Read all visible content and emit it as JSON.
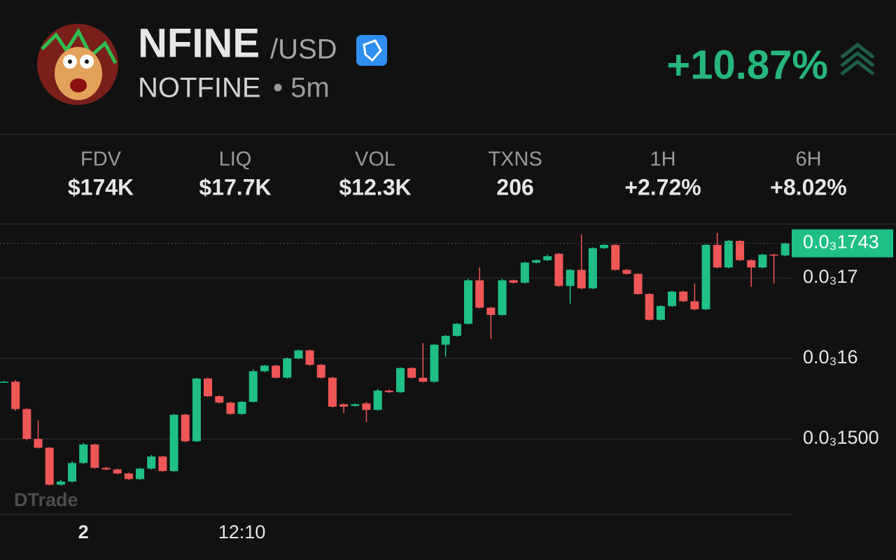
{
  "header": {
    "symbol": "NFINE",
    "quote": "/USD",
    "name": "NOTFINE",
    "interval": "• 5m",
    "change": "+10.87%"
  },
  "stats": [
    {
      "label": "FDV",
      "value": "$174K"
    },
    {
      "label": "LIQ",
      "value": "$17.7K"
    },
    {
      "label": "VOL",
      "value": "$12.3K"
    },
    {
      "label": "TXNS",
      "value": "206"
    },
    {
      "label": "1H",
      "value": "+2.72%"
    },
    {
      "label": "6H",
      "value": "+8.02%"
    }
  ],
  "watermark": "DTrade",
  "chart_data": {
    "type": "candlestick",
    "categories": [
      null,
      null,
      null,
      null,
      null,
      null,
      null,
      "2",
      null,
      null,
      null,
      null,
      null,
      null,
      null,
      null,
      null,
      null,
      null,
      null,
      null,
      "12:10",
      null,
      null,
      null,
      null,
      null,
      null,
      null,
      null,
      null,
      null,
      null,
      null,
      null,
      null,
      null,
      null,
      null,
      null,
      null,
      null,
      null,
      null,
      null,
      null,
      null,
      null,
      null,
      null,
      null,
      null,
      null,
      null,
      null,
      null,
      null,
      null,
      null,
      null,
      null,
      null,
      null,
      null,
      null,
      null,
      null,
      null,
      null,
      null
    ],
    "open": [
      0.0001571,
      0.0001571,
      0.0001537,
      0.00015,
      0.0001489,
      0.0001443,
      0.0001447,
      0.000147,
      0.0001493,
      0.0001464,
      0.0001462,
      0.0001457,
      0.000145,
      0.0001463,
      0.0001478,
      0.000146,
      0.000153,
      0.0001497,
      0.0001575,
      0.0001553,
      0.0001545,
      0.0001531,
      0.0001546,
      0.0001584,
      0.0001591,
      0.0001576,
      0.00016,
      0.000161,
      0.0001592,
      0.0001576,
      0.0001543,
      0.0001541,
      0.0001544,
      0.0001536,
      0.000156,
      0.0001558,
      0.0001588,
      0.0001576,
      0.0001571,
      0.0001617,
      0.0001628,
      0.0001643,
      0.0001697,
      0.0001663,
      0.0001654,
      0.0001697,
      0.0001694,
      0.0001719,
      0.0001722,
      0.000173,
      0.000169,
      0.000171,
      0.0001687,
      0.0001737,
      0.0001741,
      0.000171,
      0.0001705,
      0.000168,
      0.0001648,
      0.0001665,
      0.0001683,
      0.0001671,
      0.0001661,
      0.0001741,
      0.0001713,
      0.0001746,
      0.0001722,
      0.0001713,
      0.0001729,
      0.0001728
    ],
    "high": [
      0.0001572,
      0.0001573,
      0.0001538,
      0.0001523,
      0.000149,
      0.0001449,
      0.0001472,
      0.0001495,
      0.0001494,
      0.0001465,
      0.0001463,
      0.0001458,
      0.0001464,
      0.000148,
      0.0001479,
      0.0001531,
      0.0001531,
      0.0001576,
      0.0001576,
      0.0001554,
      0.0001546,
      0.0001547,
      0.0001586,
      0.0001592,
      0.0001592,
      0.0001601,
      0.0001611,
      0.0001611,
      0.0001593,
      0.0001577,
      0.0001544,
      0.0001544,
      0.0001546,
      0.0001562,
      0.0001561,
      0.0001589,
      0.0001589,
      0.0001619,
      0.0001618,
      0.0001629,
      0.0001644,
      0.0001699,
      0.0001713,
      0.0001664,
      0.0001699,
      0.0001698,
      0.000172,
      0.0001723,
      0.0001729,
      0.0001731,
      0.0001711,
      0.0001754,
      0.0001738,
      0.0001742,
      0.0001742,
      0.0001711,
      0.0001706,
      0.0001681,
      0.0001666,
      0.0001684,
      0.0001684,
      0.0001693,
      0.0001742,
      0.0001756,
      0.0001747,
      0.0001747,
      0.0001723,
      0.000173,
      0.000173,
      0.0001744
    ],
    "low": [
      0.000157,
      0.0001535,
      0.0001498,
      0.0001488,
      0.0001442,
      0.0001442,
      0.0001446,
      0.0001469,
      0.0001463,
      0.0001461,
      0.0001456,
      0.0001449,
      0.0001449,
      0.0001462,
      0.0001459,
      0.0001459,
      0.0001496,
      0.0001496,
      0.0001552,
      0.0001544,
      0.000153,
      0.000153,
      0.0001545,
      0.0001583,
      0.0001575,
      0.0001575,
      0.0001599,
      0.0001591,
      0.0001575,
      0.0001539,
      0.0001532,
      0.000154,
      0.0001521,
      0.0001535,
      0.0001557,
      0.0001557,
      0.0001575,
      0.000157,
      0.000157,
      0.0001602,
      0.0001627,
      0.0001642,
      0.0001662,
      0.0001624,
      0.0001653,
      0.0001693,
      0.0001693,
      0.0001718,
      0.0001721,
      0.0001689,
      0.0001668,
      0.0001686,
      0.0001686,
      0.0001736,
      0.0001709,
      0.0001704,
      0.0001679,
      0.0001647,
      0.0001647,
      0.0001664,
      0.000167,
      0.000166,
      0.000166,
      0.0001712,
      0.0001712,
      0.0001721,
      0.0001689,
      0.0001712,
      0.0001693,
      0.0001727
    ],
    "close": [
      0.0001571,
      0.0001537,
      0.00015,
      0.0001489,
      0.0001443,
      0.0001447,
      0.000147,
      0.0001493,
      0.0001464,
      0.0001462,
      0.0001457,
      0.000145,
      0.0001463,
      0.0001478,
      0.000146,
      0.000153,
      0.0001497,
      0.0001575,
      0.0001553,
      0.0001545,
      0.0001531,
      0.0001546,
      0.0001584,
      0.0001591,
      0.0001576,
      0.00016,
      0.000161,
      0.0001592,
      0.0001576,
      0.000154,
      0.000154,
      0.0001543,
      0.0001536,
      0.000156,
      0.0001558,
      0.0001588,
      0.0001576,
      0.0001571,
      0.0001617,
      0.0001628,
      0.0001643,
      0.0001697,
      0.0001663,
      0.0001654,
      0.0001697,
      0.0001694,
      0.0001719,
      0.0001722,
      0.0001727,
      0.000169,
      0.000171,
      0.0001687,
      0.0001737,
      0.0001741,
      0.000171,
      0.0001705,
      0.000168,
      0.0001648,
      0.0001665,
      0.0001683,
      0.0001671,
      0.0001661,
      0.0001741,
      0.0001713,
      0.0001746,
      0.0001722,
      0.0001713,
      0.0001729,
      0.0001728,
      0.0001743
    ],
    "up_color": "#1fbf86",
    "down_color": "#ef5656",
    "ylim": [
      0.0001406,
      0.0001767
    ],
    "yticks": [
      {
        "value": 0.00015,
        "label": "0.0₃1500"
      },
      {
        "value": 0.00016,
        "label": "0.0₃16"
      },
      {
        "value": 0.00017,
        "label": "0.0₃17"
      }
    ],
    "last_price": {
      "value": 0.0001743,
      "label": "0.0₃1743"
    },
    "grid": true
  }
}
